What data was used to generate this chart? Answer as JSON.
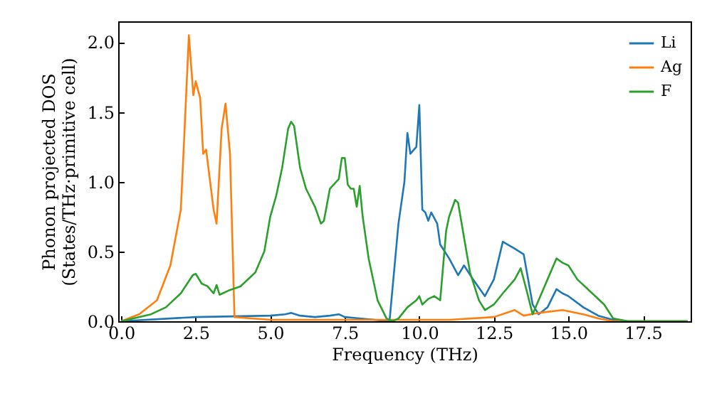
{
  "chart_data": {
    "type": "line",
    "xlabel": "Frequency (THz)",
    "ylabel": "Phonon projected DOS\n(States/THz·primitive cell)",
    "xlim": [
      -0.1,
      19.1
    ],
    "ylim": [
      0,
      2.15
    ],
    "xticks": [
      {
        "value": 0,
        "label": "0.0"
      },
      {
        "value": 2.5,
        "label": "2.5"
      },
      {
        "value": 5,
        "label": "5.0"
      },
      {
        "value": 7.5,
        "label": "7.5"
      },
      {
        "value": 10,
        "label": "10.0"
      },
      {
        "value": 12.5,
        "label": "12.5"
      },
      {
        "value": 15,
        "label": "15.0"
      },
      {
        "value": 17.5,
        "label": "17.5"
      }
    ],
    "yticks": [
      {
        "value": 0,
        "label": "0.0"
      },
      {
        "value": 0.5,
        "label": "0.5"
      },
      {
        "value": 1,
        "label": "1.0"
      },
      {
        "value": 1.5,
        "label": "1.5"
      },
      {
        "value": 2,
        "label": "2.0"
      }
    ],
    "legend": "top right",
    "grid": false,
    "marker": "none",
    "line_style": "solid",
    "series": [
      {
        "name": "Li",
        "color": "#1f77b4",
        "x": [
          0,
          2.5,
          5,
          5.5,
          5.7,
          6,
          6.5,
          7,
          7.3,
          7.5,
          8,
          8.5,
          9,
          9.3,
          9.5,
          9.6,
          9.7,
          9.9,
          10,
          10.1,
          10.2,
          10.3,
          10.4,
          10.6,
          10.7,
          11,
          11.3,
          11.5,
          11.8,
          12.2,
          12.5,
          12.8,
          13.2,
          13.5,
          13.8,
          14,
          14.3,
          14.6,
          14.8,
          15,
          15.5,
          16,
          16.5,
          17,
          19
        ],
        "values": [
          0,
          0.03,
          0.04,
          0.05,
          0.06,
          0.04,
          0.03,
          0.04,
          0.05,
          0.03,
          0.02,
          0.01,
          0,
          0.7,
          1.0,
          1.35,
          1.2,
          1.25,
          1.55,
          0.8,
          0.78,
          0.72,
          0.78,
          0.7,
          0.55,
          0.45,
          0.33,
          0.4,
          0.3,
          0.18,
          0.3,
          0.57,
          0.52,
          0.48,
          0.12,
          0.05,
          0.1,
          0.23,
          0.2,
          0.18,
          0.1,
          0.04,
          0.01,
          0,
          0
        ]
      },
      {
        "name": "Ag",
        "color": "#ff7f0e",
        "x": [
          0,
          0.6,
          1.2,
          1.65,
          2.0,
          2.1,
          2.27,
          2.42,
          2.5,
          2.65,
          2.75,
          2.85,
          3.1,
          3.2,
          3.37,
          3.5,
          3.65,
          3.8,
          5,
          8,
          11,
          12.5,
          13.2,
          13.5,
          14,
          14.8,
          15.5,
          16,
          16.5,
          19
        ],
        "values": [
          0,
          0.05,
          0.15,
          0.4,
          0.8,
          1.25,
          2.05,
          1.62,
          1.72,
          1.6,
          1.2,
          1.23,
          0.8,
          0.7,
          1.38,
          1.56,
          1.2,
          0.03,
          0.01,
          0.01,
          0.01,
          0.03,
          0.08,
          0.04,
          0.06,
          0.08,
          0.05,
          0.02,
          0,
          0
        ]
      },
      {
        "name": "F",
        "color": "#2ca02c",
        "x": [
          0,
          1,
          1.5,
          2,
          2.4,
          2.5,
          2.7,
          2.9,
          3.1,
          3.2,
          3.3,
          3.6,
          4,
          4.5,
          4.8,
          5,
          5.2,
          5.4,
          5.6,
          5.7,
          5.8,
          6,
          6.2,
          6.5,
          6.7,
          6.8,
          7,
          7.3,
          7.4,
          7.5,
          7.6,
          7.7,
          7.8,
          7.9,
          8,
          8.1,
          8.3,
          8.6,
          8.9,
          9.1,
          9.3,
          9.6,
          9.9,
          10,
          10.1,
          10.3,
          10.5,
          10.7,
          10.9,
          11,
          11.2,
          11.3,
          11.5,
          11.7,
          12,
          12.2,
          12.5,
          12.8,
          13.2,
          13.4,
          13.6,
          13.8,
          14,
          14.3,
          14.6,
          14.8,
          15,
          15.3,
          15.8,
          16.2,
          16.5,
          17,
          19
        ],
        "values": [
          0,
          0.05,
          0.1,
          0.2,
          0.33,
          0.34,
          0.27,
          0.25,
          0.2,
          0.26,
          0.19,
          0.22,
          0.25,
          0.35,
          0.5,
          0.75,
          0.9,
          1.1,
          1.38,
          1.43,
          1.4,
          1.1,
          0.95,
          0.82,
          0.7,
          0.72,
          0.95,
          1.02,
          1.17,
          1.17,
          0.98,
          0.95,
          0.95,
          0.82,
          0.97,
          0.75,
          0.45,
          0.15,
          0.02,
          0,
          0.02,
          0.1,
          0.15,
          0.18,
          0.12,
          0.16,
          0.18,
          0.15,
          0.65,
          0.75,
          0.87,
          0.85,
          0.6,
          0.35,
          0.15,
          0.08,
          0.12,
          0.2,
          0.3,
          0.38,
          0.22,
          0.05,
          0.15,
          0.3,
          0.45,
          0.42,
          0.4,
          0.3,
          0.2,
          0.12,
          0.02,
          0,
          0
        ]
      }
    ]
  }
}
